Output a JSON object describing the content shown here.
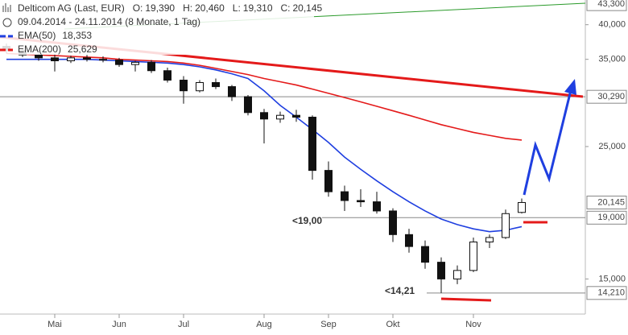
{
  "header": {
    "title": "Delticom AG (Last, EUR)",
    "ohlc": [
      {
        "label": "O:",
        "value": "19,390"
      },
      {
        "label": "H:",
        "value": "20,460"
      },
      {
        "label": "L:",
        "value": "19,310"
      },
      {
        "label": "C:",
        "value": "20,145"
      }
    ],
    "period": "09.04.2014 - 24.11.2014 (8 Monate, 1 Tag)"
  },
  "chart_data": {
    "type": "candlestick",
    "categories": [
      null,
      null,
      null,
      "Mai",
      null,
      null,
      null,
      "Jun",
      null,
      null,
      null,
      "Jul",
      null,
      null,
      null,
      null,
      "Aug",
      null,
      null,
      null,
      "Sep",
      null,
      null,
      null,
      "Okt",
      null,
      null,
      null,
      null,
      "Nov",
      null,
      null,
      null
    ],
    "open": [
      36800,
      36200,
      35600,
      35200,
      34800,
      35200,
      35000,
      34900,
      34300,
      34600,
      33500,
      32300,
      31000,
      32000,
      31500,
      30300,
      28500,
      27800,
      28200,
      28000,
      22800,
      21000,
      20300,
      20200,
      19500,
      17800,
      17000,
      16000,
      15000,
      15500,
      17300,
      17600,
      19390
    ],
    "high": [
      37200,
      36500,
      35900,
      35700,
      35500,
      35600,
      35400,
      35200,
      34800,
      34900,
      33900,
      32800,
      32300,
      32500,
      31700,
      30500,
      28900,
      28600,
      28800,
      28200,
      23600,
      21500,
      21200,
      21000,
      19700,
      18200,
      17400,
      16300,
      15800,
      17600,
      17800,
      19600,
      20460
    ],
    "low": [
      35800,
      35300,
      34800,
      33400,
      34500,
      34700,
      34600,
      34000,
      33400,
      33200,
      32000,
      29500,
      30800,
      31200,
      29800,
      28200,
      25300,
      27400,
      27500,
      22000,
      20600,
      19500,
      19800,
      19300,
      17300,
      16600,
      15600,
      14210,
      14700,
      15400,
      16900,
      17500,
      19310
    ],
    "close": [
      36200,
      35600,
      35200,
      34800,
      35200,
      35000,
      34900,
      34300,
      34600,
      33500,
      32300,
      31000,
      32000,
      31500,
      30300,
      28500,
      27800,
      28200,
      28000,
      22800,
      21000,
      20300,
      20200,
      19500,
      17800,
      17000,
      16000,
      15000,
      15500,
      17300,
      17600,
      19300,
      20145
    ],
    "series": [
      {
        "name": "EMA(50)",
        "color": "#1f3fe0",
        "last_label": "18,353",
        "values": [
          35000,
          35000,
          35000,
          35000,
          35000,
          35000,
          34900,
          34800,
          34700,
          34600,
          34500,
          34300,
          34000,
          33600,
          33100,
          32500,
          31000,
          29300,
          28000,
          26700,
          25400,
          24000,
          22900,
          21900,
          21000,
          20200,
          19500,
          18900,
          18500,
          18200,
          18000,
          18100,
          18353
        ]
      },
      {
        "name": "EMA(200)",
        "color": "#e41a1a",
        "last_label": "25,629",
        "values": [
          35800,
          35700,
          35600,
          35500,
          35400,
          35300,
          35200,
          35000,
          34900,
          34800,
          34700,
          34500,
          34200,
          33800,
          33400,
          33000,
          32500,
          32100,
          31700,
          31200,
          30700,
          30200,
          29700,
          29200,
          28700,
          28200,
          27700,
          27200,
          26800,
          26400,
          26100,
          25800,
          25629
        ]
      }
    ],
    "ylim": [
      13100,
      44000
    ],
    "log_scale": true,
    "yticks": [
      {
        "value": 15000,
        "label": "15,000"
      },
      {
        "value": 25000,
        "label": "25,000"
      },
      {
        "value": 35000,
        "label": "35,000"
      },
      {
        "value": 40000,
        "label": "40,000"
      }
    ],
    "price_labels": [
      {
        "value": 43300,
        "label": "43,300"
      },
      {
        "value": 30290,
        "label": "30,290"
      },
      {
        "value": 20145,
        "label": "20,145"
      },
      {
        "value": 19000,
        "label": "19,000"
      },
      {
        "value": 14210,
        "label": "14,210"
      }
    ],
    "annotations": [
      {
        "text": "<19,00",
        "color": "#d40000"
      },
      {
        "text": "<14,21",
        "color": "#d40000"
      }
    ]
  }
}
